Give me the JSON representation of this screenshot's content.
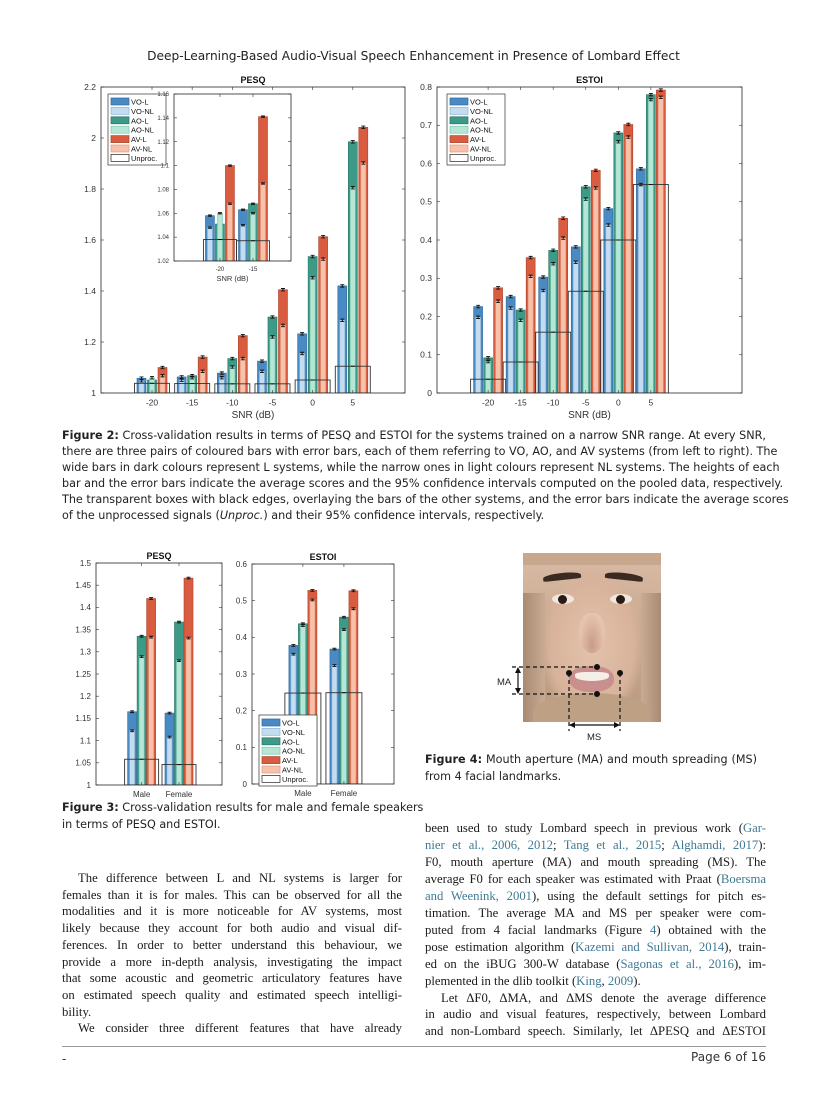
{
  "header": {
    "title": "Deep-Learning-Based Audio-Visual Speech Enhancement in Presence of Lombard Effect"
  },
  "figure2": {
    "caption": [
      [
        {
          "t": "Figure 2:",
          "b": 1
        },
        " Cross-validation results in terms of PESQ and ESTOI for the systems trained on a narrow SNR range. At every SNR,"
      ],
      [
        "there are three pairs of coloured bars with error bars, each of them referring to VO, AO, and AV systems (from left to right). The"
      ],
      [
        "wide bars in dark colours represent L systems, while the narrow ones in light colours represent NL systems. The heights of each"
      ],
      [
        "bar and the error bars indicate the average scores and the 95% confidence intervals computed on the pooled data, respectively."
      ],
      [
        "The transparent boxes with black edges, overlaying the bars of the other systems, and the error bars indicate the average scores"
      ],
      [
        "of the unprocessed signals (",
        {
          "t": "Unproc.",
          "i": 1
        },
        ") and their 95% confidence intervals, respectively."
      ]
    ]
  },
  "figure3": {
    "caption": [
      [
        {
          "t": "Figure 3:",
          "b": 1
        },
        " Cross-validation results for male and female speakers"
      ],
      [
        "in terms of PESQ and ESTOI."
      ]
    ]
  },
  "figure4": {
    "labels": {
      "ma": "MA",
      "ms": "MS"
    },
    "caption": [
      [
        {
          "t": "Figure 4:",
          "b": 1
        },
        " Mouth aperture (MA) and mouth spreading (MS)"
      ],
      [
        "from 4 facial landmarks."
      ]
    ]
  },
  "body": {
    "left": [
      [
        "The difference between L and NL systems is larger for"
      ],
      [
        "females than it is for males. This can be observed for all the"
      ],
      [
        "modalities and it is more noticeable for AV systems, most"
      ],
      [
        "likely because they account for both audio and visual dif-"
      ],
      [
        "ferences. In order to better understand this behaviour, we"
      ],
      [
        "provide a more in-depth analysis, investigating the impact"
      ],
      [
        "that some acoustic and geometric articulatory features have"
      ],
      [
        "on estimated speech quality and estimated speech intelligi-"
      ],
      [
        "bility."
      ],
      [
        "We consider three different features that have already"
      ]
    ],
    "right": [
      [
        "been used to study Lombard speech in previous work (",
        {
          "t": "Gar-",
          "c": 1
        }
      ],
      [
        {
          "t": "nier et al., 2006, 2012",
          "c": 1
        },
        "; ",
        {
          "t": "Tang et al., 2015",
          "c": 1
        },
        "; ",
        {
          "t": "Alghamdi, 2017",
          "c": 1
        },
        "):"
      ],
      [
        "F0, mouth aperture (MA) and mouth spreading (MS). The"
      ],
      [
        "average F0 for each speaker was estimated with Praat (",
        {
          "t": "Boersma",
          "c": 1
        }
      ],
      [
        {
          "t": "and Weenink, 2001",
          "c": 1
        },
        "), using the default settings for pitch es-"
      ],
      [
        "timation. The average MA and MS per speaker were com-"
      ],
      [
        "puted from 4 facial landmarks (Figure ",
        {
          "t": "4",
          "c": 1
        },
        ") obtained with the"
      ],
      [
        "pose estimation algorithm (",
        {
          "t": "Kazemi and Sullivan, 2014",
          "c": 1
        },
        "), train-"
      ],
      [
        "ed on the iBUG 300-W database (",
        {
          "t": "Sagonas et al., 2016",
          "c": 1
        },
        "), im-"
      ],
      [
        "plemented in the dlib toolkit (",
        {
          "t": "King",
          "c": 1
        },
        ", ",
        {
          "t": "2009",
          "c": 1
        },
        ")."
      ],
      [
        "Let ΔF0, ΔMA, and ΔMS denote the average difference"
      ],
      [
        "in audio and visual features, respectively, between Lombard"
      ],
      [
        "and non-Lombard speech. Similarly, let ΔPESQ and ΔESTOI"
      ]
    ]
  },
  "footer": {
    "left": "-",
    "page": "Page 6 of 16"
  },
  "colors": {
    "citation": "#3f7a94"
  },
  "chart_data": [
    {
      "type": "bar",
      "title": "PESQ",
      "xlabel": "SNR (dB)",
      "ylabel": "",
      "categories": [
        "-20",
        "-15",
        "-10",
        "-5",
        "0",
        "5"
      ],
      "ylim": [
        1,
        2.2
      ],
      "yticks": [
        1,
        1.2,
        1.4,
        1.6,
        1.8,
        2,
        2.2
      ],
      "legend": "top-left",
      "grid": false,
      "series": [
        {
          "name": "VO-L",
          "color": "#4a8ac4",
          "values": [
            1.058,
            1.063,
            1.078,
            1.125,
            1.232,
            1.42
          ]
        },
        {
          "name": "VO-NL",
          "color": "#c3dcef",
          "values": [
            1.048,
            1.05,
            1.06,
            1.085,
            1.155,
            1.285
          ]
        },
        {
          "name": "AO-L",
          "color": "#3d9a87",
          "values": [
            1.051,
            1.068,
            1.135,
            1.298,
            1.535,
            1.985
          ]
        },
        {
          "name": "AO-NL",
          "color": "#b6e6d6",
          "values": [
            1.06,
            1.06,
            1.102,
            1.22,
            1.452,
            1.805
          ]
        },
        {
          "name": "AV-L",
          "color": "#d95c40",
          "values": [
            1.1,
            1.141,
            1.225,
            1.405,
            1.613,
            2.042
          ]
        },
        {
          "name": "AV-NL",
          "color": "#f8c1a9",
          "values": [
            1.068,
            1.085,
            1.135,
            1.265,
            1.525,
            1.902
          ]
        },
        {
          "name": "Unproc.",
          "color": "none",
          "values": [
            1.038,
            1.037,
            1.036,
            1.036,
            1.051,
            1.105
          ]
        }
      ]
    },
    {
      "type": "bar",
      "title": "",
      "xlabel": "SNR (dB)",
      "ylabel": "",
      "categories": [
        "-20",
        "-15"
      ],
      "ylim": [
        1.02,
        1.16
      ],
      "yticks": [
        1.02,
        1.04,
        1.06,
        1.08,
        1.1,
        1.12,
        1.14,
        1.16
      ],
      "legend": "none",
      "grid": false,
      "series": [
        {
          "name": "VO-L",
          "color": "#4a8ac4",
          "values": [
            1.058,
            1.063
          ]
        },
        {
          "name": "VO-NL",
          "color": "#c3dcef",
          "values": [
            1.048,
            1.05
          ]
        },
        {
          "name": "AO-L",
          "color": "#3d9a87",
          "values": [
            1.051,
            1.068
          ]
        },
        {
          "name": "AO-NL",
          "color": "#b6e6d6",
          "values": [
            1.06,
            1.06
          ]
        },
        {
          "name": "AV-L",
          "color": "#d95c40",
          "values": [
            1.1,
            1.141
          ]
        },
        {
          "name": "AV-NL",
          "color": "#f8c1a9",
          "values": [
            1.068,
            1.085
          ]
        },
        {
          "name": "Unproc.",
          "color": "none",
          "values": [
            1.038,
            1.037
          ]
        }
      ]
    },
    {
      "type": "bar",
      "title": "ESTOI",
      "xlabel": "SNR (dB)",
      "ylabel": "",
      "categories": [
        "-20",
        "-15",
        "-10",
        "-5",
        "0",
        "5"
      ],
      "ylim": [
        0,
        0.8
      ],
      "yticks": [
        0,
        0.1,
        0.2,
        0.3,
        0.4,
        0.5,
        0.6,
        0.7,
        0.8
      ],
      "legend": "top-left",
      "grid": false,
      "series": [
        {
          "name": "VO-L",
          "color": "#4a8ac4",
          "values": [
            0.226,
            0.252,
            0.303,
            0.382,
            0.482,
            0.586
          ]
        },
        {
          "name": "VO-NL",
          "color": "#c3dcef",
          "values": [
            0.198,
            0.222,
            0.268,
            0.342,
            0.439,
            0.545
          ]
        },
        {
          "name": "AO-L",
          "color": "#3d9a87",
          "values": [
            0.092,
            0.217,
            0.373,
            0.539,
            0.68,
            0.78
          ]
        },
        {
          "name": "AO-NL",
          "color": "#b6e6d6",
          "values": [
            0.082,
            0.19,
            0.338,
            0.507,
            0.657,
            0.767
          ]
        },
        {
          "name": "AV-L",
          "color": "#d95c40",
          "values": [
            0.275,
            0.354,
            0.457,
            0.582,
            0.702,
            0.792
          ]
        },
        {
          "name": "AV-NL",
          "color": "#f8c1a9",
          "values": [
            0.24,
            0.305,
            0.405,
            0.536,
            0.669,
            0.773
          ]
        },
        {
          "name": "Unproc.",
          "color": "none",
          "values": [
            0.036,
            0.081,
            0.159,
            0.266,
            0.4,
            0.545
          ]
        }
      ]
    },
    {
      "type": "bar",
      "title": "PESQ",
      "xlabel": "",
      "ylabel": "",
      "categories": [
        "Male",
        "Female"
      ],
      "ylim": [
        1,
        1.5
      ],
      "yticks": [
        1,
        1.05,
        1.1,
        1.15,
        1.2,
        1.25,
        1.3,
        1.35,
        1.4,
        1.45,
        1.5
      ],
      "legend": "none",
      "grid": false,
      "series": [
        {
          "name": "VO-L",
          "color": "#4a8ac4",
          "values": [
            1.165,
            1.162
          ]
        },
        {
          "name": "VO-NL",
          "color": "#c3dcef",
          "values": [
            1.122,
            1.108
          ]
        },
        {
          "name": "AO-L",
          "color": "#3d9a87",
          "values": [
            1.335,
            1.367
          ]
        },
        {
          "name": "AO-NL",
          "color": "#b6e6d6",
          "values": [
            1.289,
            1.28
          ]
        },
        {
          "name": "AV-L",
          "color": "#d95c40",
          "values": [
            1.42,
            1.466
          ]
        },
        {
          "name": "AV-NL",
          "color": "#f8c1a9",
          "values": [
            1.333,
            1.331
          ]
        },
        {
          "name": "Unproc.",
          "color": "none",
          "values": [
            1.058,
            1.046
          ]
        }
      ]
    },
    {
      "type": "bar",
      "title": "ESTOI",
      "xlabel": "",
      "ylabel": "",
      "categories": [
        "Male",
        "Female"
      ],
      "ylim": [
        0,
        0.6
      ],
      "yticks": [
        0,
        0.1,
        0.2,
        0.3,
        0.4,
        0.5,
        0.6
      ],
      "legend": "bottom-left",
      "grid": false,
      "series": [
        {
          "name": "VO-L",
          "color": "#4a8ac4",
          "values": [
            0.378,
            0.368
          ]
        },
        {
          "name": "VO-NL",
          "color": "#c3dcef",
          "values": [
            0.354,
            0.323
          ]
        },
        {
          "name": "AO-L",
          "color": "#3d9a87",
          "values": [
            0.437,
            0.455
          ]
        },
        {
          "name": "AO-NL",
          "color": "#b6e6d6",
          "values": [
            0.432,
            0.421
          ]
        },
        {
          "name": "AV-L",
          "color": "#d95c40",
          "values": [
            0.528,
            0.527
          ]
        },
        {
          "name": "AV-NL",
          "color": "#f8c1a9",
          "values": [
            0.502,
            0.478
          ]
        },
        {
          "name": "Unproc.",
          "color": "none",
          "values": [
            0.248,
            0.249
          ]
        }
      ]
    }
  ]
}
